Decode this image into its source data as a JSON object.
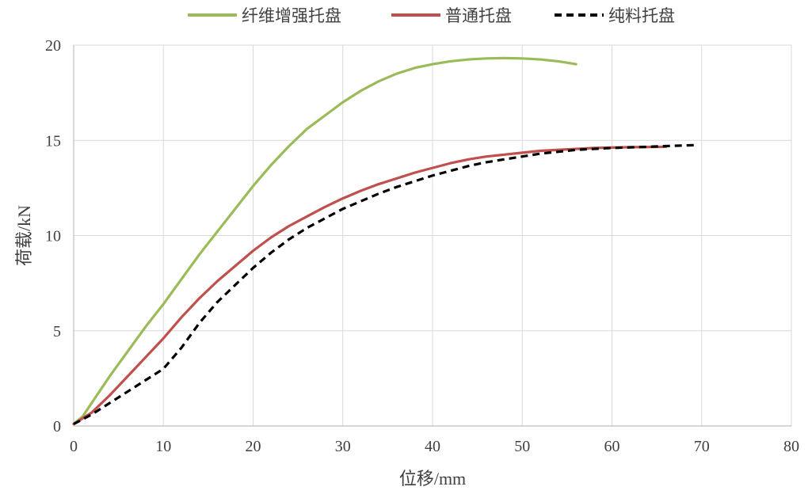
{
  "chart_data": {
    "type": "line",
    "title": "",
    "xlabel": "位移/mm",
    "ylabel": "荷载/kN",
    "xlim": [
      0,
      80
    ],
    "ylim": [
      0,
      20
    ],
    "xticks": [
      0,
      10,
      20,
      30,
      40,
      50,
      60,
      70,
      80
    ],
    "yticks": [
      0,
      5,
      10,
      15,
      20
    ],
    "grid": true,
    "legend_position": "top",
    "series": [
      {
        "name": "纤维增强托盘",
        "color": "#9BBB59",
        "dash": "solid",
        "x": [
          0,
          1,
          2,
          4,
          6,
          8,
          10,
          12,
          14,
          16,
          18,
          20,
          22,
          24,
          26,
          28,
          30,
          32,
          34,
          36,
          38,
          40,
          42,
          44,
          46,
          48,
          50,
          52,
          54,
          56
        ],
        "y": [
          0.1,
          0.5,
          1.2,
          2.6,
          3.9,
          5.2,
          6.4,
          7.7,
          9.0,
          10.2,
          11.4,
          12.6,
          13.7,
          14.7,
          15.6,
          16.3,
          17.0,
          17.6,
          18.1,
          18.5,
          18.8,
          19.0,
          19.15,
          19.25,
          19.3,
          19.32,
          19.3,
          19.25,
          19.15,
          19.0
        ]
      },
      {
        "name": "普通托盘",
        "color": "#C0504D",
        "dash": "solid",
        "x": [
          0,
          2,
          4,
          6,
          8,
          10,
          12,
          14,
          16,
          18,
          20,
          22,
          24,
          26,
          28,
          30,
          32,
          34,
          36,
          38,
          40,
          42,
          44,
          46,
          48,
          50,
          52,
          54,
          56,
          58,
          60,
          62,
          64,
          66
        ],
        "y": [
          0.1,
          0.7,
          1.6,
          2.6,
          3.6,
          4.6,
          5.7,
          6.7,
          7.6,
          8.4,
          9.2,
          9.9,
          10.5,
          11.0,
          11.5,
          11.95,
          12.35,
          12.7,
          13.0,
          13.3,
          13.55,
          13.8,
          14.0,
          14.15,
          14.25,
          14.35,
          14.45,
          14.5,
          14.55,
          14.6,
          14.62,
          14.64,
          14.65,
          14.66
        ]
      },
      {
        "name": "纯料托盘",
        "color": "#000000",
        "dash": "dashed",
        "x": [
          0,
          2,
          4,
          6,
          8,
          10,
          12,
          14,
          16,
          18,
          20,
          22,
          24,
          26,
          28,
          30,
          32,
          34,
          36,
          38,
          40,
          42,
          44,
          46,
          48,
          50,
          52,
          54,
          56,
          58,
          60,
          62,
          64,
          66,
          68,
          69.5
        ],
        "y": [
          0.1,
          0.6,
          1.2,
          1.8,
          2.4,
          3.0,
          4.1,
          5.4,
          6.5,
          7.4,
          8.3,
          9.1,
          9.8,
          10.4,
          10.9,
          11.4,
          11.8,
          12.2,
          12.55,
          12.85,
          13.15,
          13.4,
          13.65,
          13.85,
          14.0,
          14.15,
          14.3,
          14.4,
          14.5,
          14.55,
          14.6,
          14.63,
          14.66,
          14.7,
          14.73,
          14.75
        ]
      }
    ]
  }
}
